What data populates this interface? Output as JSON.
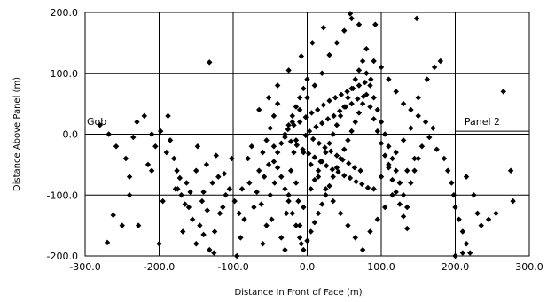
{
  "chart_data": {
    "type": "scatter",
    "title": "",
    "xlabel": "Distance In Front of Face (m)",
    "ylabel": "Distance Above Panel (m)",
    "xlim": [
      -300,
      300
    ],
    "ylim": [
      -200,
      200
    ],
    "x_ticks": [
      "-300.0",
      "-200.0",
      "-100.0",
      "0.0",
      "100.0",
      "200.0",
      "300.0"
    ],
    "y_ticks": [
      "200.0",
      "100.0",
      "0.0",
      "-100.0",
      "-200.0"
    ],
    "x_tick_values": [
      -300,
      -200,
      -100,
      0,
      100,
      200,
      300
    ],
    "y_tick_values": [
      200,
      100,
      0,
      -100,
      -200
    ],
    "grid": true,
    "marker_color": "#000000",
    "marker_shape": "diamond",
    "annotations": [
      {
        "text": "Gob",
        "x": -300,
        "y": 15
      },
      {
        "text": "Panel 2",
        "x": 210,
        "y": 15
      }
    ],
    "panel_lines_y": [
      0,
      5
    ],
    "series": [
      {
        "points": [
          [
            -262,
            -133
          ],
          [
            -270,
            -178
          ],
          [
            -250,
            -150
          ],
          [
            -240,
            -70
          ],
          [
            -215,
            -50
          ],
          [
            -200,
            -180
          ],
          [
            -195,
            -110
          ],
          [
            -185,
            -10
          ],
          [
            -180,
            -40
          ],
          [
            -175,
            -90
          ],
          [
            -172,
            -72
          ],
          [
            -160,
            -120
          ],
          [
            -150,
            -180
          ],
          [
            -145,
            -150
          ],
          [
            -140,
            -95
          ],
          [
            -132,
            -190
          ],
          [
            -125,
            -160
          ],
          [
            -118,
            -130
          ],
          [
            -110,
            -100
          ],
          [
            -102,
            -40
          ],
          [
            -95,
            -200
          ],
          [
            -90,
            -170
          ],
          [
            -85,
            -140
          ],
          [
            -78,
            -80
          ],
          [
            -72,
            -120
          ],
          [
            -65,
            -60
          ],
          [
            -60,
            -180
          ],
          [
            -55,
            -150
          ],
          [
            -50,
            -100
          ],
          [
            -45,
            -20
          ],
          [
            -230,
            20
          ],
          [
            -220,
            30
          ],
          [
            -210,
            -60
          ],
          [
            -205,
            -20
          ],
          [
            -198,
            5
          ],
          [
            -188,
            30
          ],
          [
            -178,
            -90
          ],
          [
            -170,
            -100
          ],
          [
            -165,
            -115
          ],
          [
            -158,
            -95
          ],
          [
            -150,
            -60
          ],
          [
            -142,
            -110
          ],
          [
            -135,
            -125
          ],
          [
            -128,
            -80
          ],
          [
            -120,
            -70
          ],
          [
            -112,
            -65
          ],
          [
            -105,
            -90
          ],
          [
            -98,
            -110
          ],
          [
            -92,
            -130
          ],
          [
            -88,
            -90
          ],
          [
            -80,
            -40
          ],
          [
            -75,
            -20
          ],
          [
            -68,
            -95
          ],
          [
            -62,
            -115
          ],
          [
            -58,
            -70
          ],
          [
            -52,
            -50
          ],
          [
            -48,
            -140
          ],
          [
            -44,
            -80
          ],
          [
            -40,
            -55
          ],
          [
            -35,
            -170
          ],
          [
            -30,
            -190
          ],
          [
            -28,
            -130
          ],
          [
            -25,
            -100
          ],
          [
            -22,
            -60
          ],
          [
            -18,
            -30
          ],
          [
            -15,
            -80
          ],
          [
            -12,
            -110
          ],
          [
            -10,
            -150
          ],
          [
            -8,
            -180
          ],
          [
            -5,
            -120
          ],
          [
            -132,
            118
          ],
          [
            -155,
            -140
          ],
          [
            -168,
            -160
          ],
          [
            -140,
            -165
          ],
          [
            -126,
            -195
          ],
          [
            -240,
            -100
          ],
          [
            -228,
            -150
          ],
          [
            -245,
            -40
          ],
          [
            -258,
            -20
          ],
          [
            -268,
            0
          ],
          [
            -280,
            15
          ],
          [
            -235,
            -5
          ],
          [
            -210,
            0
          ],
          [
            -190,
            -30
          ],
          [
            -176,
            -60
          ],
          [
            -163,
            -80
          ],
          [
            -148,
            -20
          ],
          [
            -136,
            -50
          ],
          [
            -123,
            -35
          ],
          [
            -114,
            -120
          ],
          [
            -20,
            20
          ],
          [
            -10,
            40
          ],
          [
            0,
            60
          ],
          [
            10,
            80
          ],
          [
            20,
            100
          ],
          [
            30,
            130
          ],
          [
            40,
            150
          ],
          [
            50,
            170
          ],
          [
            60,
            190
          ],
          [
            70,
            180
          ],
          [
            80,
            140
          ],
          [
            90,
            120
          ],
          [
            100,
            110
          ],
          [
            110,
            90
          ],
          [
            120,
            70
          ],
          [
            130,
            50
          ],
          [
            140,
            40
          ],
          [
            150,
            30
          ],
          [
            160,
            20
          ],
          [
            170,
            10
          ],
          [
            -15,
            -10
          ],
          [
            -5,
            -30
          ],
          [
            5,
            -50
          ],
          [
            15,
            -70
          ],
          [
            25,
            -90
          ],
          [
            35,
            -110
          ],
          [
            45,
            -130
          ],
          [
            55,
            -150
          ],
          [
            65,
            -170
          ],
          [
            75,
            -190
          ],
          [
            85,
            -160
          ],
          [
            95,
            -140
          ],
          [
            105,
            -120
          ],
          [
            115,
            -100
          ],
          [
            125,
            -80
          ],
          [
            135,
            -60
          ],
          [
            145,
            -40
          ],
          [
            155,
            -20
          ],
          [
            165,
            -5
          ],
          [
            175,
            -25
          ],
          [
            148,
            190
          ],
          [
            92,
            180
          ],
          [
            58,
            198
          ],
          [
            22,
            175
          ],
          [
            7,
            150
          ],
          [
            -8,
            128
          ],
          [
            -25,
            105
          ],
          [
            -40,
            80
          ],
          [
            -52,
            60
          ],
          [
            -65,
            40
          ],
          [
            180,
            120
          ],
          [
            172,
            110
          ],
          [
            162,
            90
          ],
          [
            150,
            60
          ],
          [
            140,
            10
          ],
          [
            130,
            -10
          ],
          [
            120,
            -30
          ],
          [
            110,
            -50
          ],
          [
            100,
            -70
          ],
          [
            90,
            -90
          ],
          [
            185,
            -40
          ],
          [
            190,
            -60
          ],
          [
            195,
            -80
          ],
          [
            198,
            -100
          ],
          [
            200,
            -120
          ],
          [
            205,
            -140
          ],
          [
            210,
            -160
          ],
          [
            215,
            -180
          ],
          [
            220,
            -195
          ],
          [
            230,
            -130
          ],
          [
            245,
            -140
          ],
          [
            255,
            -130
          ],
          [
            265,
            70
          ],
          [
            275,
            -60
          ],
          [
            278,
            -110
          ],
          [
            215,
            -70
          ],
          [
            225,
            -100
          ],
          [
            235,
            -150
          ],
          [
            210,
            -195
          ],
          [
            200,
            -200
          ],
          [
            -2,
            -2
          ],
          [
            3,
            5
          ],
          [
            8,
            -8
          ],
          [
            12,
            12
          ],
          [
            16,
            -15
          ],
          [
            20,
            18
          ],
          [
            24,
            -22
          ],
          [
            28,
            25
          ],
          [
            32,
            -28
          ],
          [
            36,
            30
          ],
          [
            40,
            -35
          ],
          [
            44,
            38
          ],
          [
            48,
            -42
          ],
          [
            52,
            45
          ],
          [
            56,
            -48
          ],
          [
            60,
            50
          ],
          [
            64,
            -55
          ],
          [
            68,
            58
          ],
          [
            72,
            -60
          ],
          [
            76,
            62
          ],
          [
            -30,
            -5
          ],
          [
            -26,
            8
          ],
          [
            -22,
            -12
          ],
          [
            -18,
            15
          ],
          [
            -14,
            -18
          ],
          [
            -10,
            20
          ],
          [
            -6,
            -25
          ],
          [
            -2,
            28
          ],
          [
            2,
            -32
          ],
          [
            6,
            35
          ],
          [
            10,
            -38
          ],
          [
            14,
            40
          ],
          [
            18,
            -45
          ],
          [
            22,
            48
          ],
          [
            26,
            -52
          ],
          [
            30,
            55
          ],
          [
            34,
            -58
          ],
          [
            38,
            60
          ],
          [
            42,
            -62
          ],
          [
            46,
            65
          ],
          [
            50,
            -68
          ],
          [
            54,
            70
          ],
          [
            58,
            -72
          ],
          [
            62,
            75
          ],
          [
            66,
            -78
          ],
          [
            70,
            80
          ],
          [
            74,
            -82
          ],
          [
            78,
            85
          ],
          [
            82,
            -88
          ],
          [
            86,
            90
          ],
          [
            -45,
            -45
          ],
          [
            -40,
            -30
          ],
          [
            -35,
            -15
          ],
          [
            -30,
            0
          ],
          [
            -25,
            15
          ],
          [
            -20,
            30
          ],
          [
            -15,
            45
          ],
          [
            -10,
            60
          ],
          [
            -5,
            75
          ],
          [
            0,
            90
          ],
          [
            5,
            -90
          ],
          [
            10,
            -75
          ],
          [
            15,
            -60
          ],
          [
            20,
            -45
          ],
          [
            25,
            -30
          ],
          [
            30,
            -15
          ],
          [
            35,
            0
          ],
          [
            40,
            15
          ],
          [
            45,
            30
          ],
          [
            50,
            45
          ],
          [
            55,
            60
          ],
          [
            60,
            75
          ],
          [
            65,
            90
          ],
          [
            70,
            105
          ],
          [
            75,
            120
          ],
          [
            80,
            100
          ],
          [
            85,
            80
          ],
          [
            90,
            60
          ],
          [
            95,
            40
          ],
          [
            100,
            20
          ],
          [
            105,
            0
          ],
          [
            110,
            -20
          ],
          [
            115,
            -40
          ],
          [
            120,
            -60
          ],
          [
            125,
            -80
          ],
          [
            130,
            -100
          ],
          [
            135,
            -120
          ],
          [
            140,
            -80
          ],
          [
            145,
            -60
          ],
          [
            150,
            -40
          ],
          [
            -60,
            -30
          ],
          [
            -55,
            -10
          ],
          [
            -50,
            10
          ],
          [
            -45,
            30
          ],
          [
            -40,
            50
          ],
          [
            -35,
            -70
          ],
          [
            -30,
            -90
          ],
          [
            -25,
            -110
          ],
          [
            -20,
            -130
          ],
          [
            -15,
            -150
          ],
          [
            -10,
            -170
          ],
          [
            -5,
            -190
          ],
          [
            0,
            -175
          ],
          [
            5,
            -160
          ],
          [
            10,
            -145
          ],
          [
            15,
            -130
          ],
          [
            20,
            -115
          ],
          [
            25,
            -100
          ],
          [
            30,
            -85
          ],
          [
            35,
            -70
          ],
          [
            40,
            -55
          ],
          [
            45,
            -40
          ],
          [
            50,
            -25
          ],
          [
            55,
            -10
          ],
          [
            60,
            5
          ],
          [
            65,
            20
          ],
          [
            70,
            35
          ],
          [
            75,
            50
          ],
          [
            80,
            65
          ],
          [
            85,
            45
          ],
          [
            90,
            25
          ],
          [
            95,
            5
          ],
          [
            100,
            -15
          ],
          [
            105,
            -35
          ],
          [
            110,
            -55
          ],
          [
            115,
            -75
          ],
          [
            120,
            -95
          ],
          [
            125,
            -115
          ],
          [
            130,
            -135
          ],
          [
            135,
            -155
          ]
        ]
      }
    ]
  }
}
